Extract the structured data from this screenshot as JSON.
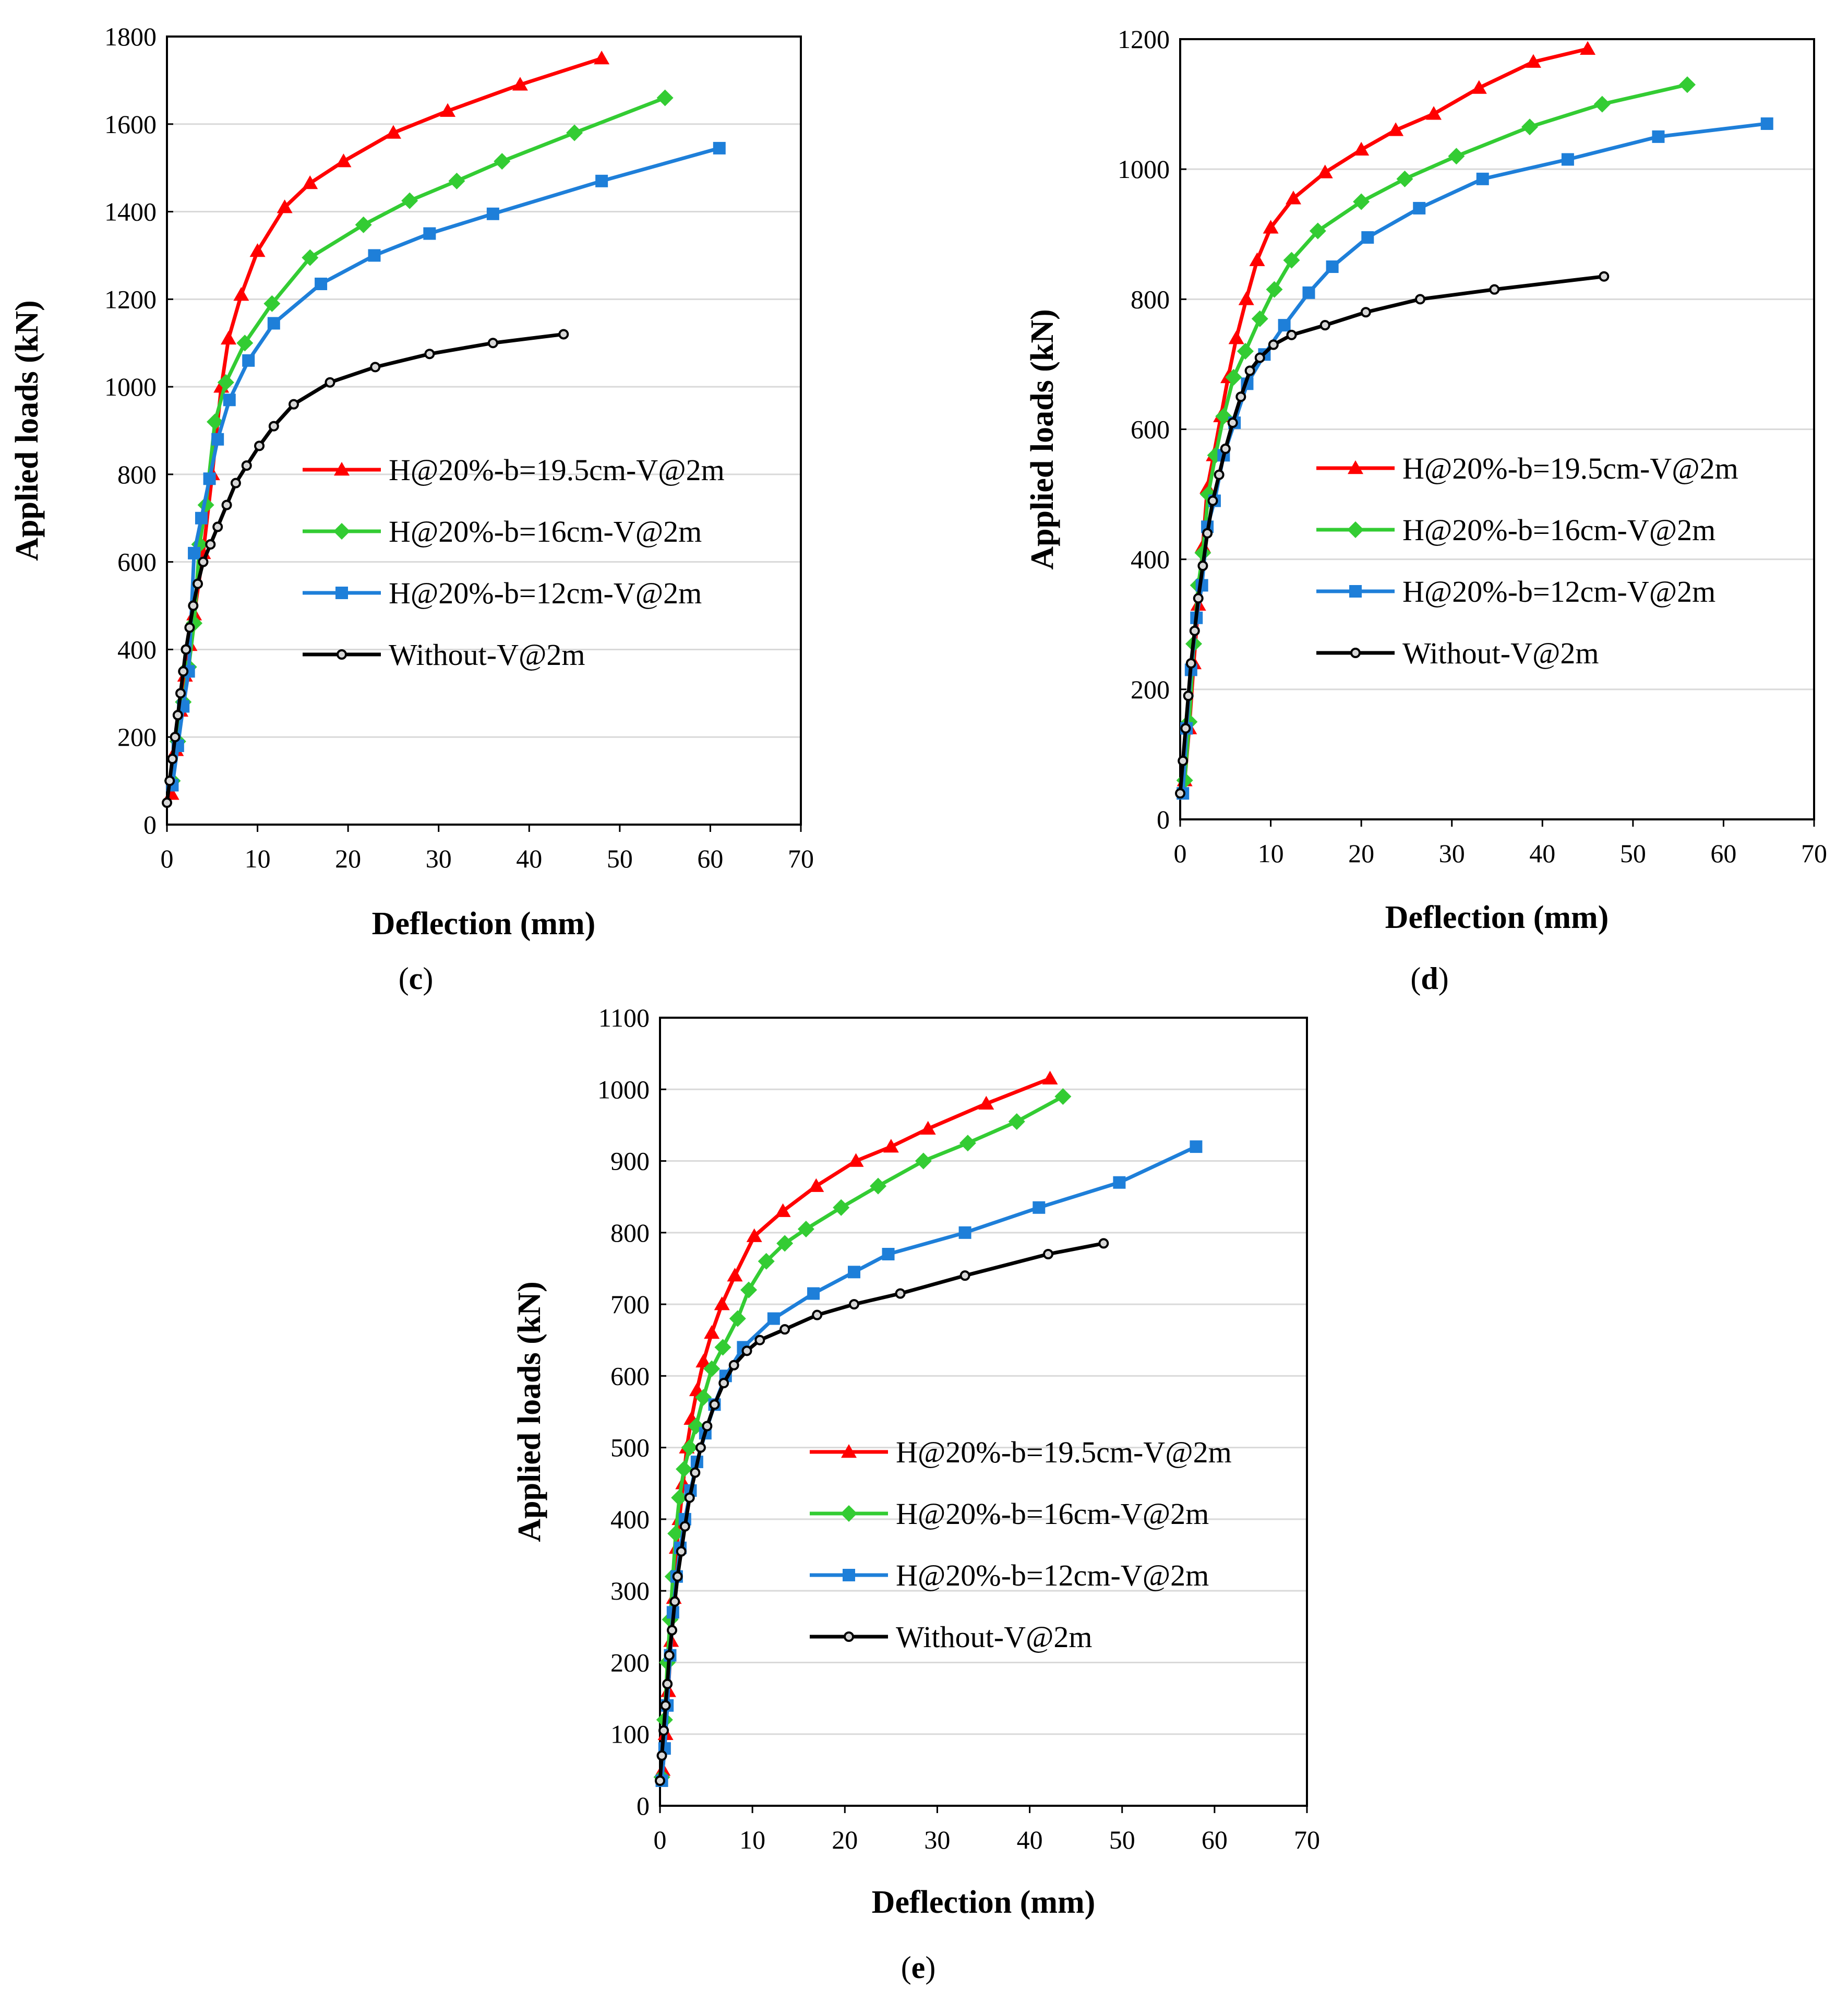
{
  "colors": {
    "red": "#FF0000",
    "green": "#33CC33",
    "blue": "#1E7FD9",
    "black": "#000000",
    "grid": "#D9D9D9"
  },
  "legend_labels": [
    "H@20%-b=19.5cm-V@2m",
    "H@20%-b=16cm-V@2m",
    "H@20%-b=12cm-V@2m",
    "Without-V@2m"
  ],
  "chart_data": [
    {
      "type": "line",
      "panel_label": "c",
      "xlabel": "Deflection (mm)",
      "ylabel": "Applied loads (kN)",
      "xlim": [
        0,
        70
      ],
      "ylim": [
        0,
        1800
      ],
      "xticks": [
        0,
        10,
        20,
        30,
        40,
        50,
        60,
        70
      ],
      "yticks": [
        0,
        200,
        400,
        600,
        800,
        1000,
        1200,
        1400,
        1600,
        1800
      ],
      "grid": "horizontal",
      "legend": "center-right",
      "series": [
        {
          "name": "H@20%-b=19.5cm-V@2m",
          "color": "red",
          "marker": "triangle",
          "x": [
            0.5,
            1.0,
            1.5,
            2.0,
            2.5,
            3.0,
            4.0,
            5.0,
            6.0,
            6.8,
            8.2,
            10.0,
            13.0,
            15.8,
            19.5,
            25.0,
            31.0,
            39.0,
            48.0
          ],
          "y": [
            70,
            170,
            260,
            340,
            410,
            480,
            620,
            800,
            1000,
            1110,
            1210,
            1310,
            1410,
            1465,
            1515,
            1580,
            1630,
            1690,
            1750
          ]
        },
        {
          "name": "H@20%-b=16cm-V@2m",
          "color": "green",
          "marker": "diamond",
          "x": [
            0.6,
            1.2,
            1.8,
            2.4,
            3.0,
            3.6,
            4.3,
            5.3,
            6.5,
            8.6,
            11.6,
            15.8,
            21.7,
            26.8,
            32.0,
            37.0,
            45.0,
            55.0
          ],
          "y": [
            100,
            190,
            280,
            360,
            460,
            640,
            730,
            920,
            1010,
            1100,
            1190,
            1295,
            1370,
            1425,
            1470,
            1515,
            1580,
            1660
          ]
        },
        {
          "name": "H@20%-b=12cm-V@2m",
          "color": "blue",
          "marker": "square",
          "x": [
            0.6,
            1.2,
            1.8,
            2.4,
            3.0,
            3.8,
            4.7,
            5.6,
            6.9,
            9.0,
            11.8,
            17.0,
            22.9,
            29.0,
            36.0,
            48.0,
            61.0
          ],
          "y": [
            90,
            180,
            270,
            350,
            620,
            700,
            790,
            880,
            970,
            1060,
            1145,
            1235,
            1300,
            1350,
            1395,
            1470,
            1545
          ]
        },
        {
          "name": "Without-V@2m",
          "color": "black",
          "marker": "circle",
          "x": [
            0,
            0.3,
            0.6,
            0.9,
            1.2,
            1.5,
            1.8,
            2.1,
            2.5,
            2.9,
            3.4,
            4.0,
            4.8,
            5.6,
            6.6,
            7.6,
            8.8,
            10.2,
            11.8,
            14.0,
            18.0,
            23.0,
            29.0,
            36.0,
            43.8
          ],
          "y": [
            50,
            100,
            150,
            200,
            250,
            300,
            350,
            400,
            450,
            500,
            550,
            600,
            640,
            680,
            730,
            780,
            820,
            865,
            910,
            960,
            1010,
            1045,
            1075,
            1100,
            1120
          ]
        }
      ]
    },
    {
      "type": "line",
      "panel_label": "d",
      "xlabel": "Deflection (mm)",
      "ylabel": "Applied loads (kN)",
      "xlim": [
        0,
        70
      ],
      "ylim": [
        0,
        1200
      ],
      "xticks": [
        0,
        10,
        20,
        30,
        40,
        50,
        60,
        70
      ],
      "yticks": [
        0,
        200,
        400,
        600,
        800,
        1000,
        1200
      ],
      "grid": "horizontal",
      "legend": "center-right",
      "series": [
        {
          "name": "H@20%-b=19.5cm-V@2m",
          "color": "red",
          "marker": "triangle",
          "x": [
            0.5,
            1.0,
            1.5,
            2.0,
            2.5,
            3.0,
            3.7,
            4.5,
            5.3,
            6.2,
            7.3,
            8.5,
            10.0,
            12.5,
            16.0,
            20.0,
            23.8,
            28.0,
            33.0,
            39.0,
            45.0
          ],
          "y": [
            60,
            140,
            240,
            330,
            420,
            510,
            560,
            620,
            680,
            740,
            800,
            860,
            910,
            955,
            995,
            1030,
            1060,
            1085,
            1125,
            1165,
            1185
          ]
        },
        {
          "name": "H@20%-b=16cm-V@2m",
          "color": "green",
          "marker": "diamond",
          "x": [
            0.5,
            1.0,
            1.5,
            2.0,
            2.5,
            3.1,
            3.9,
            4.8,
            5.9,
            7.2,
            8.8,
            10.4,
            12.3,
            15.2,
            20.0,
            24.8,
            30.5,
            38.6,
            46.6,
            56.0
          ],
          "y": [
            60,
            150,
            270,
            360,
            410,
            500,
            560,
            620,
            680,
            720,
            770,
            815,
            860,
            905,
            950,
            985,
            1020,
            1065,
            1100,
            1130
          ]
        },
        {
          "name": "H@20%-b=12cm-V@2m",
          "color": "blue",
          "marker": "square",
          "x": [
            0.3,
            0.7,
            1.2,
            1.8,
            2.4,
            3.0,
            3.8,
            4.8,
            6.0,
            7.4,
            9.3,
            11.5,
            14.2,
            16.8,
            20.7,
            26.4,
            33.4,
            42.8,
            52.8,
            64.8
          ],
          "y": [
            40,
            140,
            230,
            310,
            360,
            450,
            490,
            560,
            610,
            670,
            715,
            760,
            810,
            850,
            895,
            940,
            985,
            1015,
            1050,
            1070
          ]
        },
        {
          "name": "Without-V@2m",
          "color": "black",
          "marker": "circle",
          "x": [
            0,
            0.3,
            0.6,
            0.9,
            1.2,
            1.6,
            2.0,
            2.5,
            3.0,
            3.6,
            4.3,
            5.0,
            5.8,
            6.7,
            7.7,
            8.8,
            10.3,
            12.3,
            16.0,
            20.5,
            26.5,
            34.7,
            46.8
          ],
          "y": [
            40,
            90,
            140,
            190,
            240,
            290,
            340,
            390,
            440,
            490,
            530,
            570,
            610,
            650,
            690,
            710,
            730,
            745,
            760,
            780,
            800,
            815,
            835
          ]
        }
      ]
    },
    {
      "type": "line",
      "panel_label": "e",
      "xlabel": "Deflection (mm)",
      "ylabel": "Applied loads (kN)",
      "xlim": [
        0,
        70
      ],
      "ylim": [
        0,
        1100
      ],
      "xticks": [
        0,
        10,
        20,
        30,
        40,
        50,
        60,
        70
      ],
      "yticks": [
        0,
        100,
        200,
        300,
        400,
        500,
        600,
        700,
        800,
        900,
        1000,
        1100
      ],
      "grid": "horizontal",
      "legend": "center-right",
      "series": [
        {
          "name": "H@20%-b=19.5cm-V@2m",
          "color": "red",
          "marker": "triangle",
          "x": [
            0.3,
            0.6,
            0.9,
            1.2,
            1.5,
            1.8,
            2.1,
            2.5,
            2.9,
            3.4,
            4.0,
            4.7,
            5.6,
            6.7,
            8.1,
            10.2,
            13.3,
            16.9,
            21.2,
            25.0,
            29.0,
            35.3,
            42.2
          ],
          "y": [
            50,
            100,
            160,
            230,
            290,
            360,
            400,
            450,
            500,
            540,
            580,
            620,
            660,
            700,
            740,
            795,
            830,
            865,
            900,
            920,
            945,
            980,
            1015
          ]
        },
        {
          "name": "H@20%-b=16cm-V@2m",
          "color": "green",
          "marker": "diamond",
          "x": [
            0.2,
            0.5,
            0.8,
            1.1,
            1.4,
            1.7,
            2.1,
            2.6,
            3.2,
            3.9,
            4.7,
            5.6,
            6.8,
            8.4,
            9.6,
            11.5,
            13.5,
            15.8,
            19.6,
            23.6,
            28.5,
            33.3,
            38.6,
            43.6
          ],
          "y": [
            40,
            120,
            200,
            260,
            320,
            380,
            430,
            470,
            500,
            530,
            570,
            610,
            640,
            680,
            720,
            760,
            785,
            805,
            835,
            865,
            900,
            925,
            955,
            990
          ]
        },
        {
          "name": "H@20%-b=12cm-V@2m",
          "color": "blue",
          "marker": "square",
          "x": [
            0.2,
            0.5,
            0.8,
            1.1,
            1.4,
            1.8,
            2.2,
            2.7,
            3.3,
            4.0,
            4.9,
            5.9,
            7.1,
            9.0,
            12.3,
            16.6,
            21.0,
            24.7,
            33.0,
            41.0,
            49.7,
            58.0
          ],
          "y": [
            35,
            80,
            140,
            210,
            270,
            320,
            360,
            400,
            440,
            480,
            520,
            560,
            600,
            640,
            680,
            715,
            745,
            770,
            800,
            835,
            870,
            920
          ]
        },
        {
          "name": "Without-V@2m",
          "color": "black",
          "marker": "circle",
          "x": [
            0,
            0.2,
            0.4,
            0.6,
            0.8,
            1.0,
            1.3,
            1.6,
            1.9,
            2.3,
            2.7,
            3.2,
            3.8,
            4.4,
            5.1,
            5.9,
            6.9,
            8.0,
            9.4,
            10.8,
            13.5,
            17.0,
            21.0,
            26.0,
            33.0,
            42.0,
            48.0
          ],
          "y": [
            35,
            70,
            105,
            140,
            170,
            210,
            245,
            285,
            320,
            355,
            390,
            430,
            465,
            500,
            530,
            560,
            590,
            615,
            635,
            650,
            665,
            685,
            700,
            715,
            740,
            770,
            785
          ]
        }
      ]
    }
  ]
}
